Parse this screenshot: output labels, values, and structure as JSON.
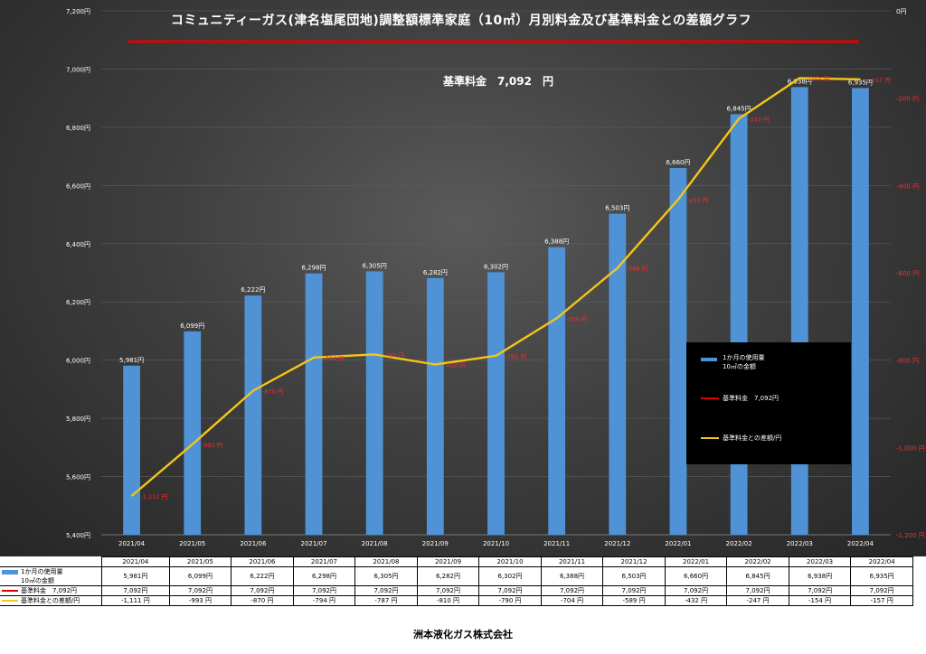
{
  "title": "コミュニティーガス(津名塩尾団地)調整額標準家庭（10㎥）月別料金及び基準料金との差額グラフ",
  "base_note": "基準料金　7,092　円",
  "footer": "洲本液化ガス株式会社",
  "colors": {
    "bar": "#4f93d6",
    "base_line": "#e00000",
    "diff_line": "#f5c518",
    "diff_label": "#ff2a2a"
  },
  "legend": {
    "bar_label_1": "1か月の使用量",
    "bar_label_2": "10㎥の金額",
    "base_label": "基準料金　7,092円",
    "diff_label": "基準料金との差額/円"
  },
  "chart_data": {
    "type": "bar",
    "title": "コミュニティーガス(津名塩尾団地)調整額標準家庭（10㎥）月別料金及び基準料金との差額グラフ",
    "categories": [
      "2021/04",
      "2021/05",
      "2021/06",
      "2021/07",
      "2021/08",
      "2021/09",
      "2021/10",
      "2021/11",
      "2021/12",
      "2022/01",
      "2022/02",
      "2022/03",
      "2022/04"
    ],
    "left_axis": {
      "ylim": [
        5400,
        7200
      ],
      "ticks": [
        "5,400円",
        "5,600円",
        "5,800円",
        "6,000円",
        "6,200円",
        "6,400円",
        "6,600円",
        "6,800円",
        "7,000円",
        "7,200円"
      ]
    },
    "right_axis": {
      "ylim": [
        -1200,
        0
      ],
      "ticks": [
        "-1,200 円",
        "-1,000 円",
        "-800 円",
        "-600 円",
        "-400 円",
        "-200 円",
        "0円"
      ]
    },
    "series": [
      {
        "name": "1か月の使用量 10㎥の金額",
        "type": "bar",
        "axis": "left",
        "values": [
          5981,
          6099,
          6222,
          6298,
          6305,
          6282,
          6302,
          6388,
          6503,
          6660,
          6845,
          6938,
          6935
        ],
        "labels": [
          "5,981円",
          "6,099円",
          "6,222円",
          "6,298円",
          "6,305円",
          "6,282円",
          "6,302円",
          "6,388円",
          "6,503円",
          "6,660円",
          "6,845円",
          "6,938円",
          "6,935円"
        ]
      },
      {
        "name": "基準料金　7,092円",
        "type": "line",
        "axis": "left",
        "values": [
          7092,
          7092,
          7092,
          7092,
          7092,
          7092,
          7092,
          7092,
          7092,
          7092,
          7092,
          7092,
          7092
        ],
        "labels": [
          "7,092円",
          "7,092円",
          "7,092円",
          "7,092円",
          "7,092円",
          "7,092円",
          "7,092円",
          "7,092円",
          "7,092円",
          "7,092円",
          "7,092円",
          "7,092円",
          "7,092円"
        ]
      },
      {
        "name": "基準料金との差額/円",
        "type": "line",
        "axis": "right",
        "values": [
          -1111,
          -993,
          -870,
          -794,
          -787,
          -810,
          -790,
          -704,
          -589,
          -432,
          -247,
          -154,
          -157
        ],
        "labels": [
          "-1,111 円",
          "-993 円",
          "-870 円",
          "-794 円",
          "-787 円",
          "-810 円",
          "-790 円",
          "-704 円",
          "-589 円",
          "-432 円",
          "-247 円",
          "-154 円",
          "-157 円"
        ]
      }
    ]
  }
}
